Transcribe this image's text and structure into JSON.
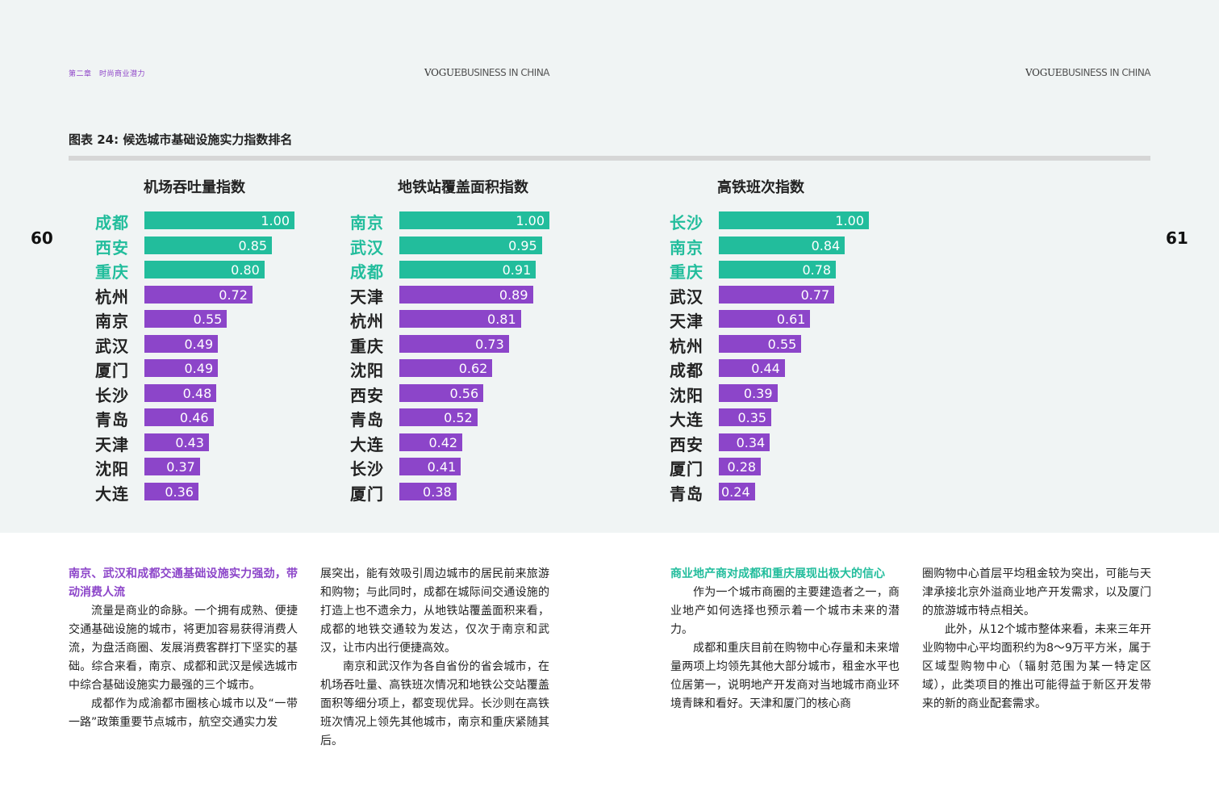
{
  "header": {
    "chapter": "第二章　时尚商业潜力",
    "brand_bold": "VOGUE",
    "brand_light": "BUSINESS IN CHINA"
  },
  "page_numbers": {
    "left": "60",
    "right": "61"
  },
  "figure_title": "图表 24: 候选城市基础设施实力指数排名",
  "chart_data": [
    {
      "type": "bar",
      "title": "机场吞吐量指数",
      "categories": [
        "成都",
        "西安",
        "重庆",
        "杭州",
        "南京",
        "武汉",
        "厦门",
        "长沙",
        "青岛",
        "天津",
        "沈阳",
        "大连"
      ],
      "values": [
        1.0,
        0.85,
        0.8,
        0.72,
        0.55,
        0.49,
        0.49,
        0.48,
        0.46,
        0.43,
        0.37,
        0.36
      ],
      "labels": [
        "1.00",
        "0.85",
        "0.80",
        "0.72",
        "0.55",
        "0.49",
        "0.49",
        "0.48",
        "0.46",
        "0.43",
        "0.37",
        "0.36"
      ],
      "highlight_top": 3
    },
    {
      "type": "bar",
      "title": "地铁站覆盖面积指数",
      "categories": [
        "南京",
        "武汉",
        "成都",
        "天津",
        "杭州",
        "重庆",
        "沈阳",
        "西安",
        "青岛",
        "大连",
        "长沙",
        "厦门"
      ],
      "values": [
        1.0,
        0.95,
        0.91,
        0.89,
        0.81,
        0.73,
        0.62,
        0.56,
        0.52,
        0.42,
        0.41,
        0.38
      ],
      "labels": [
        "1.00",
        "0.95",
        "0.91",
        "0.89",
        "0.81",
        "0.73",
        "0.62",
        "0.56",
        "0.52",
        "0.42",
        "0.41",
        "0.38"
      ],
      "highlight_top": 3
    },
    {
      "type": "bar",
      "title": "高铁班次指数",
      "categories": [
        "长沙",
        "南京",
        "重庆",
        "武汉",
        "天津",
        "杭州",
        "成都",
        "沈阳",
        "大连",
        "西安",
        "厦门",
        "青岛"
      ],
      "values": [
        1.0,
        0.84,
        0.78,
        0.77,
        0.61,
        0.55,
        0.44,
        0.39,
        0.35,
        0.34,
        0.28,
        0.24
      ],
      "labels": [
        "1.00",
        "0.84",
        "0.78",
        "0.77",
        "0.61",
        "0.55",
        "0.44",
        "0.39",
        "0.35",
        "0.34",
        "0.28",
        "0.24"
      ],
      "highlight_top": 3
    }
  ],
  "colors": {
    "highlight": "#22bd9c",
    "normal": "#8c45c9"
  },
  "text": {
    "col1_heading": "南京、武汉和成都交通基础设施实力强劲，带动消费人流",
    "col1_p1": "流量是商业的命脉。一个拥有成熟、便捷交通基础设施的城市，将更加容易获得消费人流，为盘活商圈、发展消费客群打下坚实的基础。综合来看，南京、成都和武汉是候选城市中综合基础设施实力最强的三个城市。",
    "col1_p2": "成都作为成渝都市圈核心城市以及“一带一路”政策重要节点城市，航空交通实力发",
    "col2_p1": "展突出，能有效吸引周边城市的居民前来旅游和购物；与此同时，成都在城际间交通设施的打造上也不遗余力，从地铁站覆盖面积来看，成都的地铁交通较为发达，仅次于南京和武汉，让市内出行便捷高效。",
    "col2_p2": "南京和武汉作为各自省份的省会城市，在机场吞吐量、高铁班次情况和地铁公交站覆盖面积等细分项上，都变现优异。长沙则在高铁班次情况上领先其他城市，南京和重庆紧随其后。",
    "col3_heading": "商业地产商对成都和重庆展现出极大的信心",
    "col3_p1": "作为一个城市商圈的主要建造者之一，商业地产如何选择也预示着一个城市未来的潜力。",
    "col3_p2": "成都和重庆目前在购物中心存量和未来增量两项上均领先其他大部分城市，租金水平也位居第一，说明地产开发商对当地城市商业环境青睐和看好。天津和厦门的核心商",
    "col4_p1": "圈购物中心首层平均租金较为突出，可能与天津承接北京外溢商业地产开发需求，以及厦门的旅游城市特点相关。",
    "col4_p2": "此外，从12个城市整体来看，未来三年开业购物中心平均面积约为8～9万平方米，属于区域型购物中心（辐射范围为某一特定区域），此类项目的推出可能得益于新区开发带来的新的商业配套需求。"
  }
}
